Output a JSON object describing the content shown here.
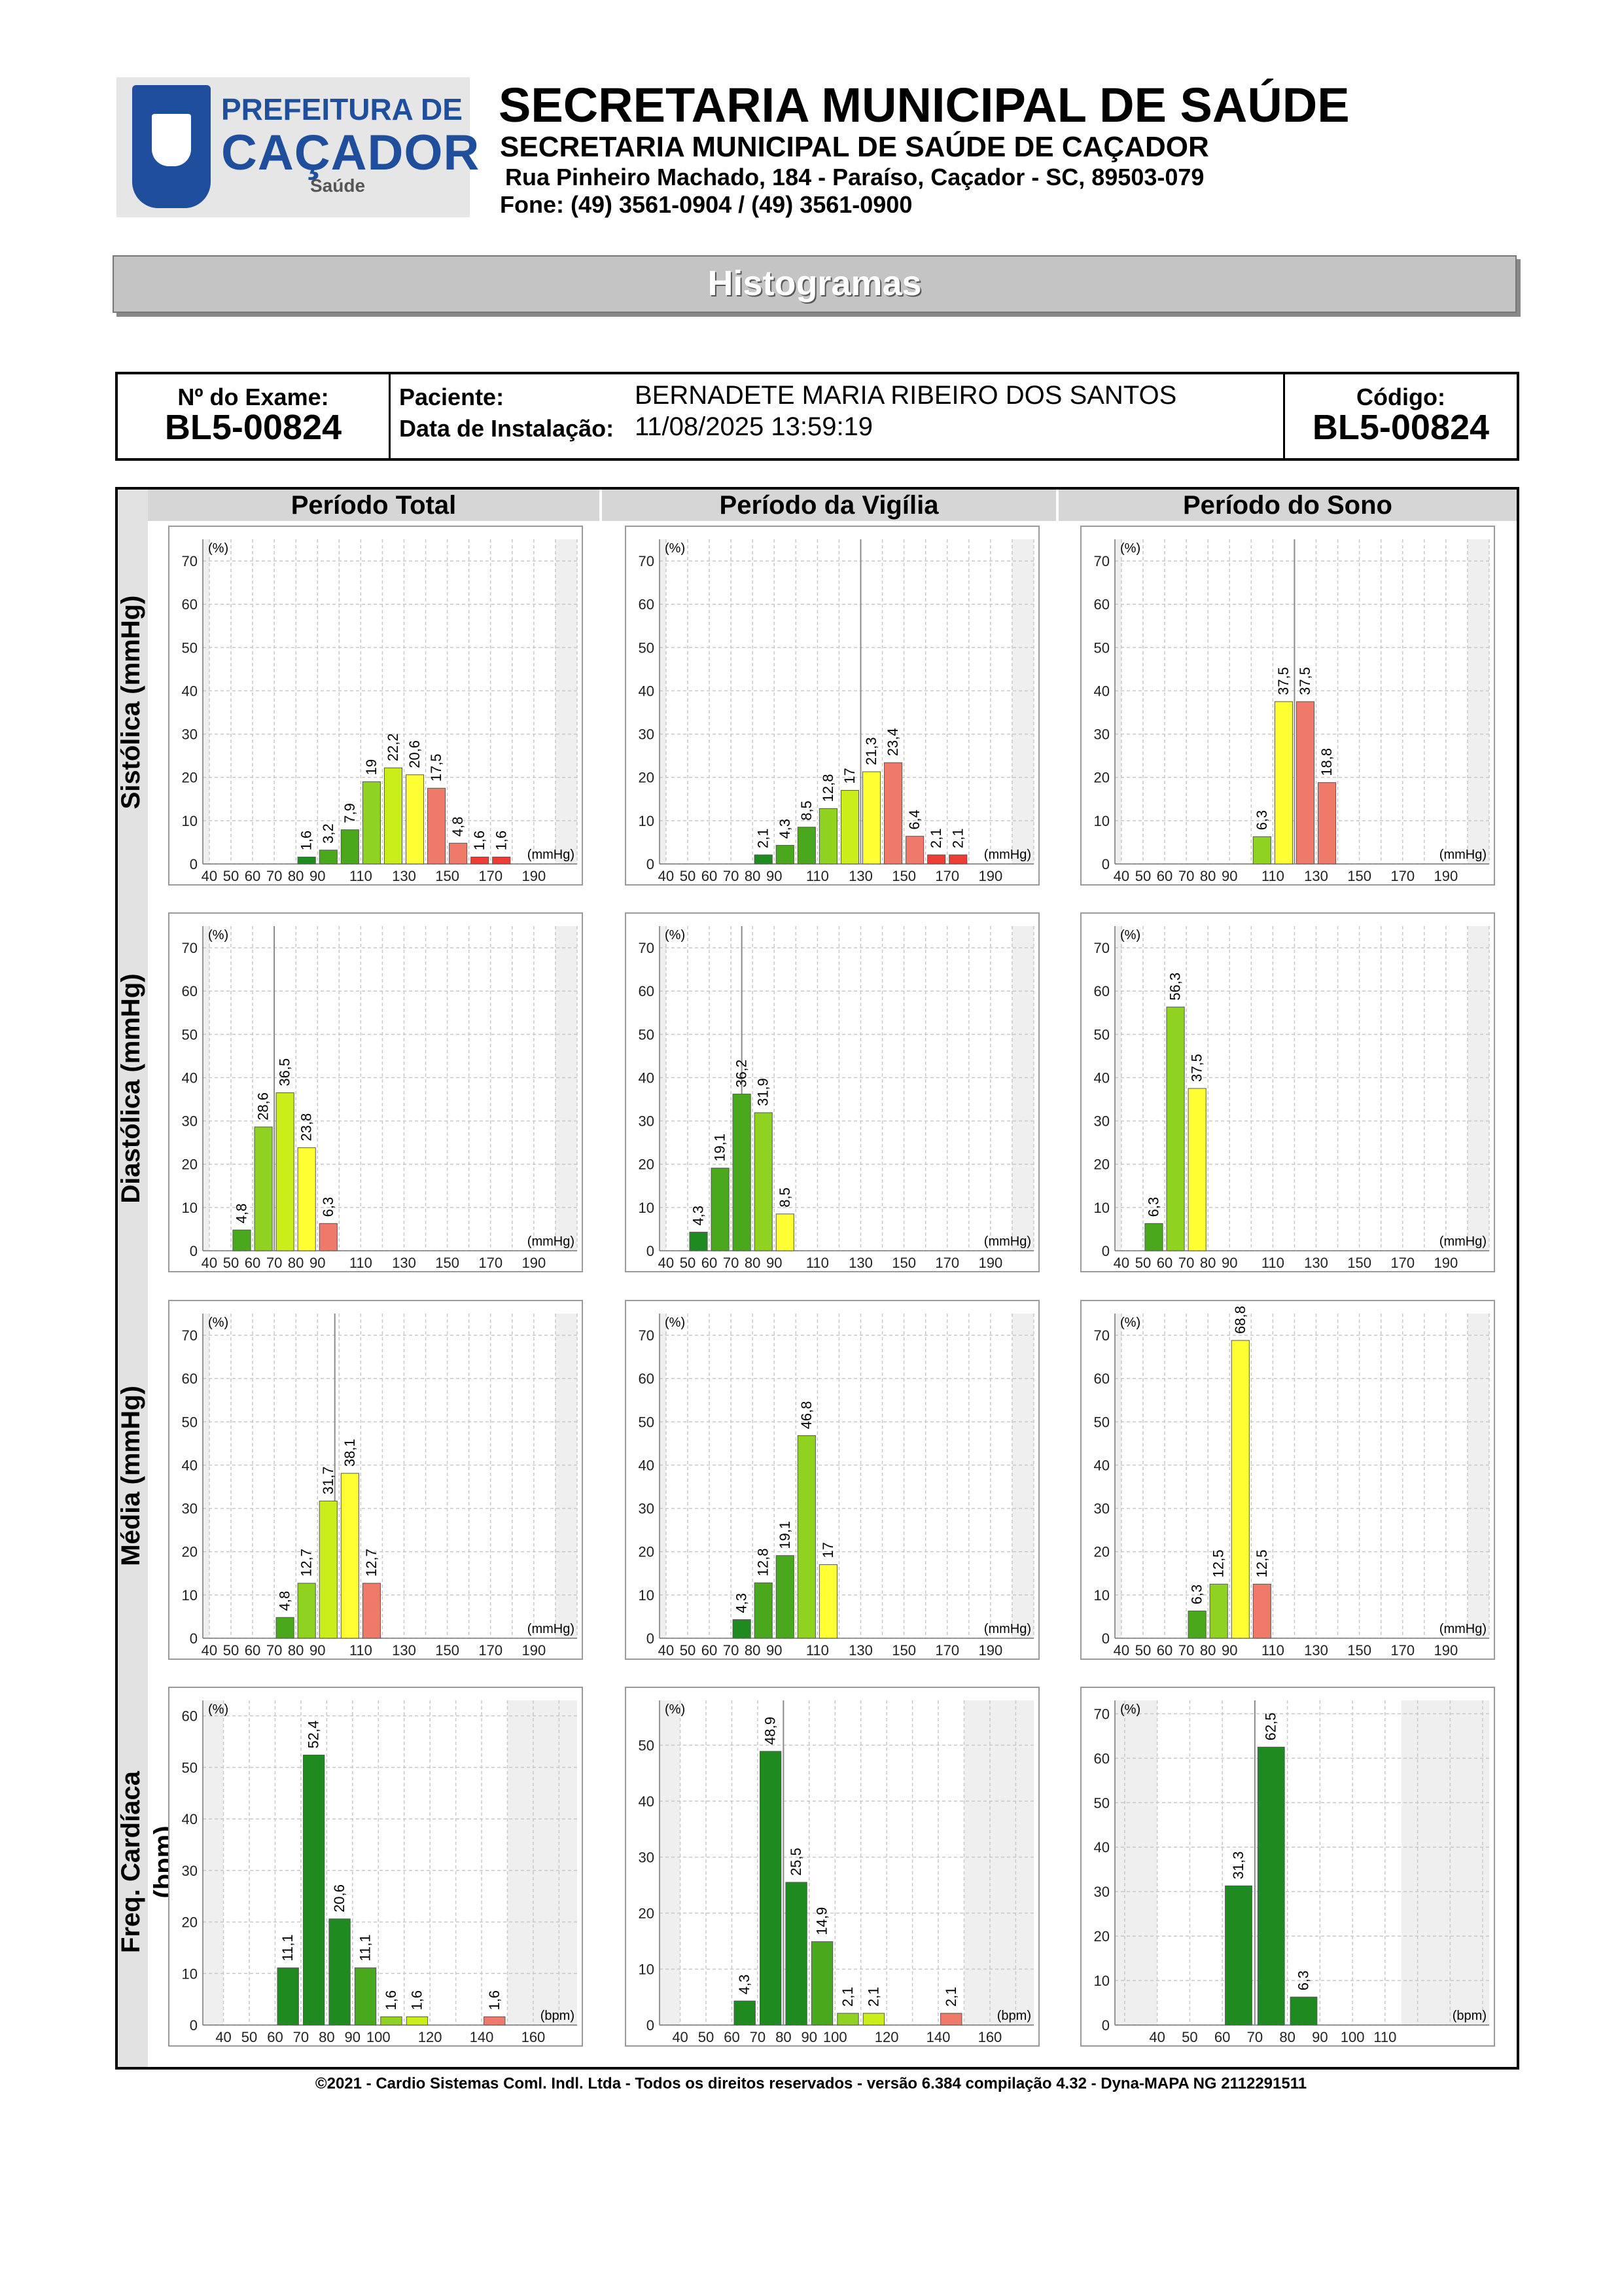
{
  "header": {
    "logo_line1": "PREFEITURA DE",
    "logo_line2": "CAÇADOR",
    "logo_line3": "Saúde",
    "title": "SECRETARIA MUNICIPAL DE SAÚDE",
    "subtitle": "SECRETARIA MUNICIPAL DE SAÚDE DE CAÇADOR",
    "address": "Rua Pinheiro Machado, 184 - Paraíso, Caçador - SC, 89503-079",
    "phone": "Fone: (49) 3561-0904  / (49) 3561-0900"
  },
  "page_title": "Histogramas",
  "info": {
    "exam_label": "Nº do Exame:",
    "exam_value": "BL5-00824",
    "patient_label": "Paciente:",
    "patient_value": "BERNADETE MARIA RIBEIRO DOS SANTOS",
    "install_label": "Data de Instalação:",
    "install_value": "11/08/2025 13:59:19",
    "code_label": "Código:",
    "code_value": "BL5-00824"
  },
  "columns": [
    "Período Total",
    "Período da Vigília",
    "Período do Sono"
  ],
  "rows": [
    "Sistólica (mmHg)",
    "Diastólica (mmHg)",
    "Média (mmHg)",
    "Freq. Cardíaca (bpm)"
  ],
  "footer": "©2021 - Cardio Sistemas Coml. Indl. Ltda - Todos os direitos reservados - versão 6.384 compilação 4.32 - Dyna-MAPA NG 2112291511",
  "colors": {
    "dark_green": "#1f8a1f",
    "green": "#4aa81c",
    "light_green": "#8fd21f",
    "yellow_green": "#c9ee1a",
    "yellow": "#ffff33",
    "salmon": "#f07a6a",
    "red": "#ee3b33"
  },
  "chart_data": [
    {
      "type": "bar",
      "row": "Sistólica (mmHg)",
      "column": "Período Total",
      "y_unit": "(%)",
      "x_unit": "(mmHg)",
      "ylim": [
        0,
        75
      ],
      "xlim": [
        37,
        210
      ],
      "yticks": [
        0,
        10,
        20,
        30,
        40,
        50,
        60,
        70
      ],
      "xticks": [
        40,
        50,
        60,
        70,
        80,
        90,
        110,
        130,
        150,
        170,
        190
      ],
      "bars": [
        {
          "x": 85,
          "value": 1.6,
          "color": "#1f8a1f"
        },
        {
          "x": 95,
          "value": 3.2,
          "color": "#4aa81c"
        },
        {
          "x": 105,
          "value": 7.9,
          "color": "#4aa81c"
        },
        {
          "x": 115,
          "value": 19,
          "color": "#8fd21f"
        },
        {
          "x": 125,
          "value": 22.2,
          "color": "#c9ee1a"
        },
        {
          "x": 135,
          "value": 20.6,
          "color": "#ffff33"
        },
        {
          "x": 145,
          "value": 17.5,
          "color": "#f07a6a"
        },
        {
          "x": 155,
          "value": 4.8,
          "color": "#f07a6a"
        },
        {
          "x": 165,
          "value": 1.6,
          "color": "#ee3b33"
        },
        {
          "x": 175,
          "value": 1.6,
          "color": "#ee3b33"
        }
      ],
      "labels": [
        "1,6",
        "3,2",
        "7,9",
        "19",
        "22,2",
        "20,6",
        "17,5",
        "4,8",
        "1,6",
        "1,6"
      ]
    },
    {
      "type": "bar",
      "row": "Sistólica (mmHg)",
      "column": "Período da Vigília",
      "y_unit": "(%)",
      "x_unit": "(mmHg)",
      "ylim": [
        0,
        75
      ],
      "xlim": [
        37,
        210
      ],
      "yticks": [
        0,
        10,
        20,
        30,
        40,
        50,
        60,
        70
      ],
      "xticks": [
        40,
        50,
        60,
        70,
        80,
        90,
        110,
        130,
        150,
        170,
        190
      ],
      "marker": 130,
      "bars": [
        {
          "x": 85,
          "value": 2.1,
          "color": "#1f8a1f"
        },
        {
          "x": 95,
          "value": 4.3,
          "color": "#4aa81c"
        },
        {
          "x": 105,
          "value": 8.5,
          "color": "#4aa81c"
        },
        {
          "x": 115,
          "value": 12.8,
          "color": "#8fd21f"
        },
        {
          "x": 125,
          "value": 17,
          "color": "#c9ee1a"
        },
        {
          "x": 135,
          "value": 21.3,
          "color": "#ffff33"
        },
        {
          "x": 145,
          "value": 23.4,
          "color": "#f07a6a"
        },
        {
          "x": 155,
          "value": 6.4,
          "color": "#f07a6a"
        },
        {
          "x": 165,
          "value": 2.1,
          "color": "#ee3b33"
        },
        {
          "x": 175,
          "value": 2.1,
          "color": "#ee3b33"
        }
      ],
      "labels": [
        "2,1",
        "4,3",
        "8,5",
        "12,8",
        "17",
        "21,3",
        "23,4",
        "6,4",
        "2,1",
        "2,1"
      ]
    },
    {
      "type": "bar",
      "row": "Sistólica (mmHg)",
      "column": "Período do Sono",
      "y_unit": "(%)",
      "x_unit": "(mmHg)",
      "ylim": [
        0,
        75
      ],
      "xlim": [
        37,
        210
      ],
      "yticks": [
        0,
        10,
        20,
        30,
        40,
        50,
        60,
        70
      ],
      "xticks": [
        40,
        50,
        60,
        70,
        80,
        90,
        110,
        130,
        150,
        170,
        190
      ],
      "marker": 120,
      "bars": [
        {
          "x": 105,
          "value": 6.3,
          "color": "#8fd21f"
        },
        {
          "x": 115,
          "value": 37.5,
          "color": "#ffff33"
        },
        {
          "x": 125,
          "value": 37.5,
          "color": "#f07a6a"
        },
        {
          "x": 135,
          "value": 18.8,
          "color": "#f07a6a"
        }
      ],
      "labels": [
        "6,3",
        "37,5",
        "37,5",
        "18,8"
      ]
    },
    {
      "type": "bar",
      "row": "Diastólica (mmHg)",
      "column": "Período Total",
      "y_unit": "(%)",
      "x_unit": "(mmHg)",
      "ylim": [
        0,
        75
      ],
      "xlim": [
        37,
        210
      ],
      "yticks": [
        0,
        10,
        20,
        30,
        40,
        50,
        60,
        70
      ],
      "xticks": [
        40,
        50,
        60,
        70,
        80,
        90,
        110,
        130,
        150,
        170,
        190
      ],
      "marker": 70,
      "bars": [
        {
          "x": 55,
          "value": 4.8,
          "color": "#4aa81c"
        },
        {
          "x": 65,
          "value": 28.6,
          "color": "#8fd21f"
        },
        {
          "x": 75,
          "value": 36.5,
          "color": "#c9ee1a"
        },
        {
          "x": 85,
          "value": 23.8,
          "color": "#ffff33"
        },
        {
          "x": 95,
          "value": 6.3,
          "color": "#f07a6a"
        }
      ],
      "labels": [
        "4,8",
        "28,6",
        "36,5",
        "23,8",
        "6,3"
      ]
    },
    {
      "type": "bar",
      "row": "Diastólica (mmHg)",
      "column": "Período da Vigília",
      "y_unit": "(%)",
      "x_unit": "(mmHg)",
      "ylim": [
        0,
        75
      ],
      "xlim": [
        37,
        210
      ],
      "yticks": [
        0,
        10,
        20,
        30,
        40,
        50,
        60,
        70
      ],
      "xticks": [
        40,
        50,
        60,
        70,
        80,
        90,
        110,
        130,
        150,
        170,
        190
      ],
      "marker": 75,
      "bars": [
        {
          "x": 55,
          "value": 4.3,
          "color": "#1f8a1f"
        },
        {
          "x": 65,
          "value": 19.1,
          "color": "#4aa81c"
        },
        {
          "x": 75,
          "value": 36.2,
          "color": "#4aa81c"
        },
        {
          "x": 85,
          "value": 31.9,
          "color": "#8fd21f"
        },
        {
          "x": 95,
          "value": 8.5,
          "color": "#ffff33"
        }
      ],
      "labels": [
        "4,3",
        "19,1",
        "36,2",
        "31,9",
        "8,5"
      ]
    },
    {
      "type": "bar",
      "row": "Diastólica (mmHg)",
      "column": "Período do Sono",
      "y_unit": "(%)",
      "x_unit": "(mmHg)",
      "ylim": [
        0,
        75
      ],
      "xlim": [
        37,
        210
      ],
      "yticks": [
        0,
        10,
        20,
        30,
        40,
        50,
        60,
        70
      ],
      "xticks": [
        40,
        50,
        60,
        70,
        80,
        90,
        110,
        130,
        150,
        170,
        190
      ],
      "bars": [
        {
          "x": 55,
          "value": 6.3,
          "color": "#4aa81c"
        },
        {
          "x": 65,
          "value": 56.3,
          "color": "#8fd21f"
        },
        {
          "x": 75,
          "value": 37.5,
          "color": "#ffff33"
        }
      ],
      "labels": [
        "6,3",
        "56,3",
        "37,5"
      ]
    },
    {
      "type": "bar",
      "row": "Média (mmHg)",
      "column": "Período Total",
      "y_unit": "(%)",
      "x_unit": "(mmHg)",
      "ylim": [
        0,
        75
      ],
      "xlim": [
        37,
        210
      ],
      "yticks": [
        0,
        10,
        20,
        30,
        40,
        50,
        60,
        70
      ],
      "xticks": [
        40,
        50,
        60,
        70,
        80,
        90,
        110,
        130,
        150,
        170,
        190
      ],
      "marker": 98,
      "bars": [
        {
          "x": 75,
          "value": 4.8,
          "color": "#4aa81c"
        },
        {
          "x": 85,
          "value": 12.7,
          "color": "#8fd21f"
        },
        {
          "x": 95,
          "value": 31.7,
          "color": "#c9ee1a"
        },
        {
          "x": 105,
          "value": 38.1,
          "color": "#ffff33"
        },
        {
          "x": 115,
          "value": 12.7,
          "color": "#f07a6a"
        }
      ],
      "labels": [
        "4,8",
        "12,7",
        "31,7",
        "38,1",
        "12,7"
      ]
    },
    {
      "type": "bar",
      "row": "Média (mmHg)",
      "column": "Período da Vigília",
      "y_unit": "(%)",
      "x_unit": "(mmHg)",
      "ylim": [
        0,
        75
      ],
      "xlim": [
        37,
        210
      ],
      "yticks": [
        0,
        10,
        20,
        30,
        40,
        50,
        60,
        70
      ],
      "xticks": [
        40,
        50,
        60,
        70,
        80,
        90,
        110,
        130,
        150,
        170,
        190
      ],
      "bars": [
        {
          "x": 75,
          "value": 4.3,
          "color": "#1f8a1f"
        },
        {
          "x": 85,
          "value": 12.8,
          "color": "#4aa81c"
        },
        {
          "x": 95,
          "value": 19.1,
          "color": "#4aa81c"
        },
        {
          "x": 105,
          "value": 46.8,
          "color": "#8fd21f"
        },
        {
          "x": 115,
          "value": 17,
          "color": "#ffff33"
        }
      ],
      "labels": [
        "4,3",
        "12,8",
        "19,1",
        "46,8",
        "17"
      ]
    },
    {
      "type": "bar",
      "row": "Média (mmHg)",
      "column": "Período do Sono",
      "y_unit": "(%)",
      "x_unit": "(mmHg)",
      "ylim": [
        0,
        75
      ],
      "xlim": [
        37,
        210
      ],
      "yticks": [
        0,
        10,
        20,
        30,
        40,
        50,
        60,
        70
      ],
      "xticks": [
        40,
        50,
        60,
        70,
        80,
        90,
        110,
        130,
        150,
        170,
        190
      ],
      "bars": [
        {
          "x": 75,
          "value": 6.3,
          "color": "#4aa81c"
        },
        {
          "x": 85,
          "value": 12.5,
          "color": "#8fd21f"
        },
        {
          "x": 95,
          "value": 68.8,
          "color": "#ffff33"
        },
        {
          "x": 105,
          "value": 12.5,
          "color": "#f07a6a"
        }
      ],
      "labels": [
        "6,3",
        "12,5",
        "68,8",
        "12,5"
      ]
    },
    {
      "type": "bar",
      "row": "Freq. Cardíaca (bpm)",
      "column": "Período Total",
      "y_unit": "(%)",
      "x_unit": "(bpm)",
      "ylim": [
        0,
        63
      ],
      "xlim": [
        32,
        177
      ],
      "yticks": [
        0,
        10,
        20,
        30,
        40,
        50,
        60
      ],
      "xticks": [
        40,
        50,
        60,
        70,
        80,
        90,
        100,
        120,
        140,
        160
      ],
      "bars": [
        {
          "x": 65,
          "value": 11.1,
          "color": "#1f8a1f"
        },
        {
          "x": 75,
          "value": 52.4,
          "color": "#1f8a1f"
        },
        {
          "x": 85,
          "value": 20.6,
          "color": "#1f8a1f"
        },
        {
          "x": 95,
          "value": 11.1,
          "color": "#4aa81c"
        },
        {
          "x": 105,
          "value": 1.6,
          "color": "#8fd21f"
        },
        {
          "x": 115,
          "value": 1.6,
          "color": "#c9ee1a"
        },
        {
          "x": 145,
          "value": 1.6,
          "color": "#f07a6a"
        }
      ],
      "labels": [
        "11,1",
        "52,4",
        "20,6",
        "11,1",
        "1,6",
        "1,6",
        "1,6"
      ]
    },
    {
      "type": "bar",
      "row": "Freq. Cardíaca (bpm)",
      "column": "Período da Vigília",
      "y_unit": "(%)",
      "x_unit": "(bpm)",
      "ylim": [
        0,
        58
      ],
      "xlim": [
        32,
        177
      ],
      "yticks": [
        0,
        10,
        20,
        30,
        40,
        50
      ],
      "xticks": [
        40,
        50,
        60,
        70,
        80,
        90,
        100,
        120,
        140,
        160
      ],
      "marker": 80,
      "bars": [
        {
          "x": 65,
          "value": 4.3,
          "color": "#1f8a1f"
        },
        {
          "x": 75,
          "value": 48.9,
          "color": "#1f8a1f"
        },
        {
          "x": 85,
          "value": 25.5,
          "color": "#1f8a1f"
        },
        {
          "x": 95,
          "value": 14.9,
          "color": "#4aa81c"
        },
        {
          "x": 105,
          "value": 2.1,
          "color": "#8fd21f"
        },
        {
          "x": 115,
          "value": 2.1,
          "color": "#c9ee1a"
        },
        {
          "x": 145,
          "value": 2.1,
          "color": "#f07a6a"
        }
      ],
      "labels": [
        "4,3",
        "48,9",
        "25,5",
        "14,9",
        "2,1",
        "2,1",
        "2,1"
      ]
    },
    {
      "type": "bar",
      "row": "Freq. Cardíaca (bpm)",
      "column": "Período do Sono",
      "y_unit": "(%)",
      "x_unit": "(bpm)",
      "ylim": [
        0,
        73
      ],
      "xlim": [
        27,
        142
      ],
      "yticks": [
        0,
        10,
        20,
        30,
        40,
        50,
        60,
        70
      ],
      "xticks": [
        40,
        50,
        60,
        70,
        80,
        90,
        100,
        110
      ],
      "marker": 70,
      "bars": [
        {
          "x": 65,
          "value": 31.3,
          "color": "#1f8a1f"
        },
        {
          "x": 75,
          "value": 62.5,
          "color": "#1f8a1f"
        },
        {
          "x": 85,
          "value": 6.3,
          "color": "#1f8a1f"
        }
      ],
      "labels": [
        "31,3",
        "62,5",
        "6,3"
      ]
    }
  ]
}
